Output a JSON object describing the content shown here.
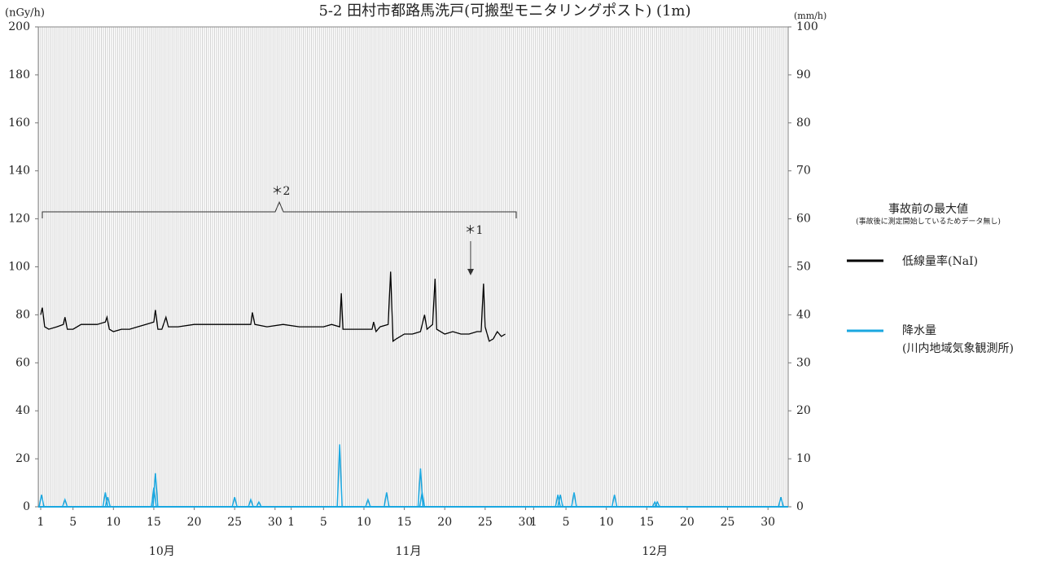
{
  "chart_data": {
    "type": "line",
    "title": "5-2 田村市都路馬洗戸(可搬型モニタリングポスト) (1m)",
    "y_label": "(nGy/h)",
    "y2_label": "(mm/h)",
    "xlim": [
      0.7,
      93.5
    ],
    "xticks": [
      {
        "value": 1,
        "label": "1"
      },
      {
        "value": 5,
        "label": "5"
      },
      {
        "value": 10,
        "label": "10"
      },
      {
        "value": 15,
        "label": "15"
      },
      {
        "value": 20,
        "label": "20"
      },
      {
        "value": 25,
        "label": "25"
      },
      {
        "value": 30,
        "label": "30"
      },
      {
        "value": 32,
        "label": "1"
      },
      {
        "value": 36,
        "label": "5"
      },
      {
        "value": 41,
        "label": "10"
      },
      {
        "value": 46,
        "label": "15"
      },
      {
        "value": 51,
        "label": "20"
      },
      {
        "value": 56,
        "label": "25"
      },
      {
        "value": 61,
        "label": "30"
      },
      {
        "value": 62,
        "label": "1"
      },
      {
        "value": 66,
        "label": "5"
      },
      {
        "value": 71,
        "label": "10"
      },
      {
        "value": 76,
        "label": "15"
      },
      {
        "value": 81,
        "label": "20"
      },
      {
        "value": 86,
        "label": "25"
      },
      {
        "value": 91,
        "label": "30"
      }
    ],
    "months": [
      "10月",
      "11月",
      "12月"
    ],
    "ylim": [
      0,
      200
    ],
    "yticks": [
      0,
      20,
      40,
      60,
      80,
      100,
      120,
      140,
      160,
      180,
      200
    ],
    "y2lim": [
      0,
      100
    ],
    "y2ticks": [
      0,
      10,
      20,
      30,
      40,
      50,
      60,
      70,
      80,
      90,
      100
    ],
    "series": [
      {
        "name": "低線量率(NaI)",
        "color": "#000000",
        "x": [
          1,
          1.2,
          1.5,
          2,
          3,
          3.8,
          4,
          4.3,
          5,
          6,
          7,
          8,
          9,
          9.2,
          9.5,
          10,
          11,
          12,
          13,
          14,
          15,
          15.2,
          15.5,
          16,
          16.5,
          16.8,
          18,
          20,
          22,
          24,
          26,
          27,
          27.2,
          27.5,
          29,
          31,
          33,
          35,
          36,
          37,
          38,
          38.2,
          38.4,
          40,
          42,
          42.2,
          42.5,
          43,
          44,
          44.3,
          44.6,
          45,
          46,
          47,
          48,
          48.5,
          48.8,
          49.5,
          49.8,
          50,
          51,
          52,
          53,
          54,
          55,
          55.5,
          55.8,
          56,
          56.5,
          57,
          57.5,
          58,
          58.5
        ],
        "values": [
          80,
          83,
          75,
          74,
          75,
          76,
          79,
          74,
          74,
          76,
          76,
          76,
          77,
          79,
          74,
          73,
          74,
          74,
          75,
          76,
          77,
          82,
          74,
          74,
          79,
          75,
          75,
          76,
          76,
          76,
          76,
          76,
          81,
          76,
          75,
          76,
          75,
          75,
          75,
          76,
          75,
          89,
          74,
          74,
          74,
          77,
          73,
          75,
          76,
          98,
          69,
          70,
          72,
          72,
          73,
          80,
          74,
          76,
          95,
          74,
          72,
          73,
          72,
          72,
          73,
          73,
          93,
          75,
          69,
          70,
          73,
          71,
          72
        ]
      },
      {
        "name": "降水量",
        "name_note": "(川内地域気象観測所)",
        "color": "#1aa7e0",
        "axis": "y2",
        "x": [
          1.1,
          4,
          9,
          9.3,
          15,
          15.2,
          25,
          27,
          28,
          38,
          41.5,
          43.8,
          48,
          48.2,
          65,
          65.3,
          67,
          72,
          77,
          77.3,
          92.6
        ],
        "values": [
          2.5,
          1.5,
          3,
          2,
          4,
          7,
          2,
          1.5,
          1,
          13,
          1.5,
          3,
          8,
          3,
          2.5,
          2.5,
          3,
          2.5,
          1,
          1,
          2
        ]
      }
    ],
    "legend_title": "事故前の最大値",
    "legend_note": "(事故後に測定開始しているためデータ無し)",
    "annotations": [
      "＊2",
      "＊1"
    ]
  }
}
